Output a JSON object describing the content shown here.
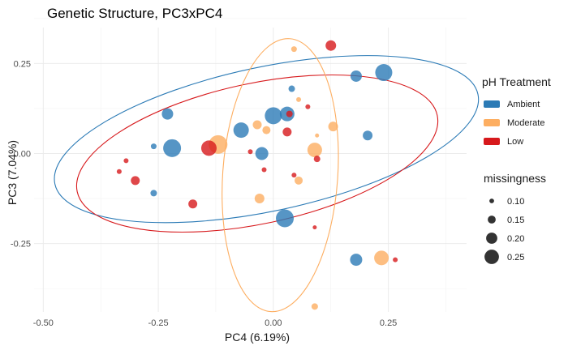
{
  "chart_data": {
    "type": "scatter",
    "title": "Genetic Structure, PC3xPC4",
    "xlabel": "PC4 (6.19%)",
    "ylabel": "PC3 (7.04%)",
    "xlim": [
      -0.52,
      0.42
    ],
    "ylim": [
      -0.44,
      0.35
    ],
    "x_ticks": [
      -0.5,
      -0.25,
      0.0,
      0.25
    ],
    "x_tick_labels": [
      "-0.50",
      "-0.25",
      "0.00",
      "0.25"
    ],
    "y_ticks": [
      -0.25,
      0.0,
      0.25
    ],
    "y_tick_labels": [
      "-0.25",
      "0.00",
      "0.25"
    ],
    "grid": true,
    "colors": {
      "Ambient": "#2c7bb6",
      "Moderate": "#fdae61",
      "Low": "#d7191c"
    },
    "legend_color": {
      "title": "pH Treatment",
      "position": "right",
      "items": [
        {
          "label": "Ambient",
          "color": "#2c7bb6"
        },
        {
          "label": "Moderate",
          "color": "#fdae61"
        },
        {
          "label": "Low",
          "color": "#d7191c"
        }
      ]
    },
    "legend_size": {
      "title": "missingness",
      "items": [
        {
          "label": "0.10",
          "value": 0.1
        },
        {
          "label": "0.15",
          "value": 0.15
        },
        {
          "label": "0.20",
          "value": 0.2
        },
        {
          "label": "0.25",
          "value": 0.25
        }
      ]
    },
    "ellipses": [
      {
        "group": "Ambient",
        "cx": -0.015,
        "cy": 0.04,
        "rx": 0.47,
        "ry": 0.2,
        "angle": 12
      },
      {
        "group": "Low",
        "cx": -0.035,
        "cy": 0.0,
        "rx": 0.4,
        "ry": 0.195,
        "angle": 12
      },
      {
        "group": "Moderate",
        "cx": 0.015,
        "cy": -0.06,
        "rx": 0.125,
        "ry": 0.38,
        "angle": -4
      }
    ],
    "series": [
      {
        "name": "Ambient",
        "points": [
          {
            "x": 0.24,
            "y": 0.225,
            "m": 0.25
          },
          {
            "x": 0.18,
            "y": 0.215,
            "m": 0.18
          },
          {
            "x": 0.04,
            "y": 0.18,
            "m": 0.12
          },
          {
            "x": -0.23,
            "y": 0.11,
            "m": 0.18
          },
          {
            "x": 0.0,
            "y": 0.105,
            "m": 0.25
          },
          {
            "x": 0.03,
            "y": 0.11,
            "m": 0.22
          },
          {
            "x": -0.07,
            "y": 0.065,
            "m": 0.23
          },
          {
            "x": 0.205,
            "y": 0.05,
            "m": 0.16
          },
          {
            "x": -0.26,
            "y": 0.02,
            "m": 0.11
          },
          {
            "x": -0.22,
            "y": 0.015,
            "m": 0.26
          },
          {
            "x": -0.025,
            "y": 0.0,
            "m": 0.2
          },
          {
            "x": -0.26,
            "y": -0.11,
            "m": 0.12
          },
          {
            "x": 0.025,
            "y": -0.18,
            "m": 0.26
          },
          {
            "x": 0.18,
            "y": -0.295,
            "m": 0.19
          }
        ]
      },
      {
        "name": "Moderate",
        "points": [
          {
            "x": 0.045,
            "y": 0.29,
            "m": 0.11
          },
          {
            "x": 0.055,
            "y": 0.15,
            "m": 0.1
          },
          {
            "x": -0.035,
            "y": 0.08,
            "m": 0.15
          },
          {
            "x": -0.015,
            "y": 0.065,
            "m": 0.14
          },
          {
            "x": 0.13,
            "y": 0.075,
            "m": 0.16
          },
          {
            "x": 0.095,
            "y": 0.05,
            "m": 0.09
          },
          {
            "x": -0.12,
            "y": 0.025,
            "m": 0.27
          },
          {
            "x": 0.09,
            "y": 0.01,
            "m": 0.22
          },
          {
            "x": 0.055,
            "y": -0.075,
            "m": 0.14
          },
          {
            "x": -0.03,
            "y": -0.125,
            "m": 0.16
          },
          {
            "x": 0.235,
            "y": -0.29,
            "m": 0.22
          },
          {
            "x": 0.09,
            "y": -0.425,
            "m": 0.12
          }
        ]
      },
      {
        "name": "Low",
        "points": [
          {
            "x": 0.125,
            "y": 0.3,
            "m": 0.17
          },
          {
            "x": 0.075,
            "y": 0.13,
            "m": 0.1
          },
          {
            "x": 0.035,
            "y": 0.11,
            "m": 0.12
          },
          {
            "x": 0.03,
            "y": 0.06,
            "m": 0.15
          },
          {
            "x": -0.14,
            "y": 0.015,
            "m": 0.23
          },
          {
            "x": -0.05,
            "y": 0.005,
            "m": 0.1
          },
          {
            "x": 0.095,
            "y": -0.015,
            "m": 0.12
          },
          {
            "x": -0.32,
            "y": -0.02,
            "m": 0.1
          },
          {
            "x": -0.02,
            "y": -0.045,
            "m": 0.1
          },
          {
            "x": -0.335,
            "y": -0.05,
            "m": 0.1
          },
          {
            "x": 0.045,
            "y": -0.06,
            "m": 0.1
          },
          {
            "x": -0.3,
            "y": -0.075,
            "m": 0.15
          },
          {
            "x": -0.175,
            "y": -0.14,
            "m": 0.15
          },
          {
            "x": 0.09,
            "y": -0.205,
            "m": 0.09
          },
          {
            "x": 0.265,
            "y": -0.295,
            "m": 0.1
          }
        ]
      }
    ]
  }
}
